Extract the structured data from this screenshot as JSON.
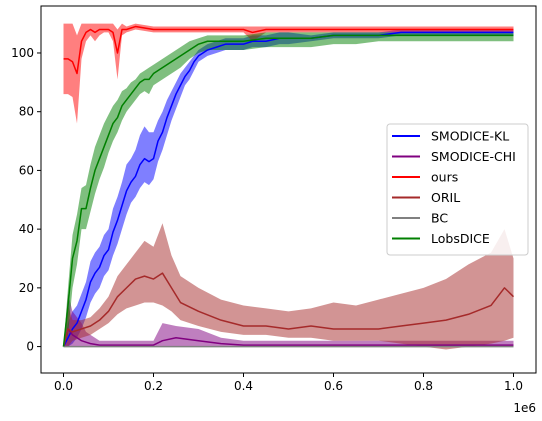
{
  "chart_data": {
    "type": "line",
    "title": "",
    "xlabel": "",
    "ylabel": "",
    "x_offset_label": "1e6",
    "xlim": [
      -0.05,
      1.05
    ],
    "ylim": [
      -9,
      116
    ],
    "x_ticks": [
      0.0,
      0.2,
      0.4,
      0.6,
      0.8,
      1.0
    ],
    "x_tick_labels": [
      "0.0",
      "0.2",
      "0.4",
      "0.6",
      "0.8",
      "1.0"
    ],
    "y_ticks": [
      0,
      20,
      40,
      60,
      80,
      100
    ],
    "y_tick_labels": [
      "0",
      "20",
      "40",
      "60",
      "80",
      "100"
    ],
    "grid": false,
    "legend_position": "center-right",
    "series": [
      {
        "name": "SMODICE-KL",
        "color": "#0000ff",
        "x": [
          0,
          0.01,
          0.02,
          0.03,
          0.04,
          0.05,
          0.06,
          0.07,
          0.08,
          0.09,
          0.1,
          0.11,
          0.12,
          0.13,
          0.14,
          0.15,
          0.16,
          0.17,
          0.18,
          0.19,
          0.2,
          0.21,
          0.22,
          0.23,
          0.24,
          0.25,
          0.26,
          0.27,
          0.28,
          0.29,
          0.3,
          0.32,
          0.34,
          0.36,
          0.38,
          0.4,
          0.42,
          0.45,
          0.48,
          0.5,
          0.55,
          0.6,
          0.65,
          0.7,
          0.75,
          0.8,
          0.85,
          0.9,
          0.95,
          1.0
        ],
        "y": [
          0,
          3,
          6,
          8,
          12,
          16,
          22,
          25,
          27,
          31,
          33,
          39,
          43,
          48,
          53,
          56,
          58,
          62,
          64,
          63,
          64,
          70,
          73,
          78,
          82,
          86,
          89,
          92,
          94,
          97,
          99,
          101,
          102,
          103,
          103,
          103,
          104,
          104,
          105,
          105,
          105,
          106,
          106,
          106,
          107,
          107,
          107,
          107,
          107,
          107
        ],
        "lower": [
          0,
          0,
          1,
          3,
          6,
          10,
          15,
          18,
          20,
          24,
          26,
          31,
          35,
          40,
          45,
          49,
          51,
          54,
          56,
          55,
          57,
          63,
          67,
          72,
          77,
          81,
          85,
          89,
          91,
          94,
          97,
          99,
          100,
          101,
          101,
          101,
          102,
          102,
          103,
          103,
          104,
          105,
          105,
          105,
          106,
          106,
          106,
          106,
          106,
          106
        ],
        "upper": [
          0,
          8,
          12,
          14,
          18,
          22,
          29,
          32,
          34,
          38,
          40,
          47,
          51,
          56,
          62,
          64,
          67,
          72,
          75,
          73,
          73,
          77,
          80,
          84,
          87,
          90,
          93,
          95,
          97,
          99,
          101,
          103,
          104,
          105,
          105,
          105,
          106,
          106,
          107,
          107,
          106,
          107,
          107,
          107,
          108,
          108,
          108,
          108,
          108,
          108
        ]
      },
      {
        "name": "SMODICE-CHI",
        "color": "#800080",
        "x": [
          0,
          0.01,
          0.02,
          0.03,
          0.04,
          0.05,
          0.06,
          0.08,
          0.1,
          0.15,
          0.2,
          0.22,
          0.25,
          0.3,
          0.35,
          0.4,
          0.5,
          0.6,
          0.7,
          0.8,
          0.9,
          1.0
        ],
        "y": [
          0,
          6,
          4,
          3,
          2,
          1.5,
          1,
          0.5,
          0.5,
          0.5,
          0.5,
          2,
          3,
          2,
          1,
          0.5,
          0.5,
          0.5,
          0.5,
          0.5,
          0.5,
          0.5
        ],
        "lower": [
          0,
          0,
          0,
          0,
          0,
          0,
          0,
          0,
          0,
          0,
          0,
          0,
          0,
          0,
          0,
          0,
          0,
          0,
          0,
          0,
          0,
          0
        ],
        "upper": [
          0,
          18,
          12,
          10,
          8,
          5,
          4,
          2,
          2,
          2,
          2,
          8,
          7,
          6,
          3,
          2,
          2,
          2,
          2,
          2,
          2,
          2
        ]
      },
      {
        "name": "ours",
        "color": "#ff0000",
        "x": [
          0,
          0.01,
          0.02,
          0.03,
          0.04,
          0.05,
          0.06,
          0.07,
          0.08,
          0.09,
          0.1,
          0.11,
          0.12,
          0.13,
          0.14,
          0.16,
          0.2,
          0.25,
          0.3,
          0.35,
          0.4,
          0.42,
          0.45,
          0.5,
          0.6,
          0.7,
          0.8,
          0.9,
          1.0
        ],
        "y": [
          98,
          98,
          97,
          93,
          104,
          107,
          108,
          107,
          108,
          108,
          108,
          107,
          100,
          108,
          108,
          109,
          108,
          108,
          108,
          108,
          108,
          107,
          108,
          108,
          108,
          108,
          108,
          108,
          108
        ],
        "lower": [
          86,
          86,
          85,
          76,
          98,
          104,
          106,
          104,
          106,
          107,
          107,
          104,
          91,
          106,
          107,
          108,
          107,
          107,
          107,
          107,
          107,
          104,
          107,
          107,
          107,
          107,
          107,
          107,
          107
        ],
        "upper": [
          110,
          110,
          110,
          106,
          110,
          110,
          110,
          110,
          110,
          110,
          110,
          110,
          108,
          110,
          109,
          110,
          109,
          109,
          109,
          109,
          109,
          109,
          109,
          109,
          109,
          109,
          109,
          109,
          109
        ]
      },
      {
        "name": "ORIL",
        "color": "#a52a2a",
        "x": [
          0,
          0.01,
          0.02,
          0.04,
          0.06,
          0.08,
          0.1,
          0.12,
          0.14,
          0.16,
          0.18,
          0.2,
          0.22,
          0.24,
          0.26,
          0.3,
          0.35,
          0.4,
          0.45,
          0.5,
          0.55,
          0.6,
          0.65,
          0.7,
          0.75,
          0.8,
          0.85,
          0.9,
          0.95,
          0.98,
          1.0
        ],
        "y": [
          0,
          6,
          5,
          6,
          7,
          9,
          12,
          17,
          20,
          23,
          24,
          23,
          25,
          20,
          15,
          12,
          9,
          7,
          7,
          6,
          7,
          6,
          6,
          6,
          7,
          8,
          9,
          11,
          14,
          20,
          17
        ],
        "lower": [
          0,
          0,
          2,
          3,
          4,
          6,
          8,
          11,
          13,
          14,
          15,
          15,
          14,
          12,
          9,
          7,
          5,
          4,
          4,
          3,
          3,
          2,
          2,
          2,
          1,
          0,
          -1,
          0,
          1,
          2,
          3
        ],
        "upper": [
          0,
          14,
          9,
          9,
          10,
          13,
          17,
          24,
          28,
          32,
          36,
          34,
          42,
          31,
          24,
          20,
          16,
          14,
          13,
          12,
          13,
          15,
          14,
          16,
          18,
          20,
          23,
          28,
          32,
          40,
          30
        ]
      },
      {
        "name": "BC",
        "color": "#808080",
        "x": [
          0,
          0.02,
          0.05,
          0.1,
          0.2,
          0.3,
          0.4,
          0.5,
          0.6,
          0.7,
          0.8,
          0.9,
          1.0
        ],
        "y": [
          0,
          0,
          0,
          0,
          0,
          0,
          0,
          0,
          0,
          0,
          0,
          0,
          0
        ]
      },
      {
        "name": "LobsDICE",
        "color": "#008000",
        "x": [
          0,
          0.01,
          0.02,
          0.03,
          0.04,
          0.05,
          0.06,
          0.07,
          0.08,
          0.09,
          0.1,
          0.11,
          0.12,
          0.13,
          0.14,
          0.15,
          0.16,
          0.17,
          0.18,
          0.19,
          0.2,
          0.22,
          0.24,
          0.26,
          0.28,
          0.3,
          0.32,
          0.35,
          0.4,
          0.45,
          0.5,
          0.55,
          0.6,
          0.65,
          0.7,
          0.75,
          0.8,
          0.85,
          0.9,
          0.95,
          1.0
        ],
        "y": [
          0,
          14,
          30,
          36,
          47,
          47,
          54,
          60,
          64,
          68,
          72,
          76,
          78,
          82,
          84,
          86,
          88,
          90,
          91,
          91,
          93,
          95,
          97,
          99,
          101,
          103,
          104,
          104,
          104,
          105,
          105,
          105,
          106,
          106,
          106,
          106,
          106,
          106,
          106,
          106,
          106
        ],
        "lower": [
          0,
          4,
          20,
          28,
          40,
          40,
          46,
          52,
          57,
          61,
          66,
          70,
          73,
          77,
          80,
          82,
          84,
          86,
          87,
          86,
          89,
          91,
          93,
          95,
          98,
          100,
          101,
          101,
          101,
          102,
          102,
          102,
          103,
          103,
          104,
          104,
          104,
          104,
          104,
          104,
          104
        ],
        "upper": [
          0,
          20,
          38,
          45,
          54,
          55,
          62,
          68,
          72,
          76,
          79,
          82,
          84,
          87,
          88,
          90,
          91,
          93,
          94,
          95,
          96,
          98,
          100,
          102,
          104,
          105,
          106,
          106,
          106,
          107,
          107,
          107,
          107,
          107,
          107,
          107,
          107,
          107,
          107,
          107,
          107
        ]
      }
    ]
  }
}
